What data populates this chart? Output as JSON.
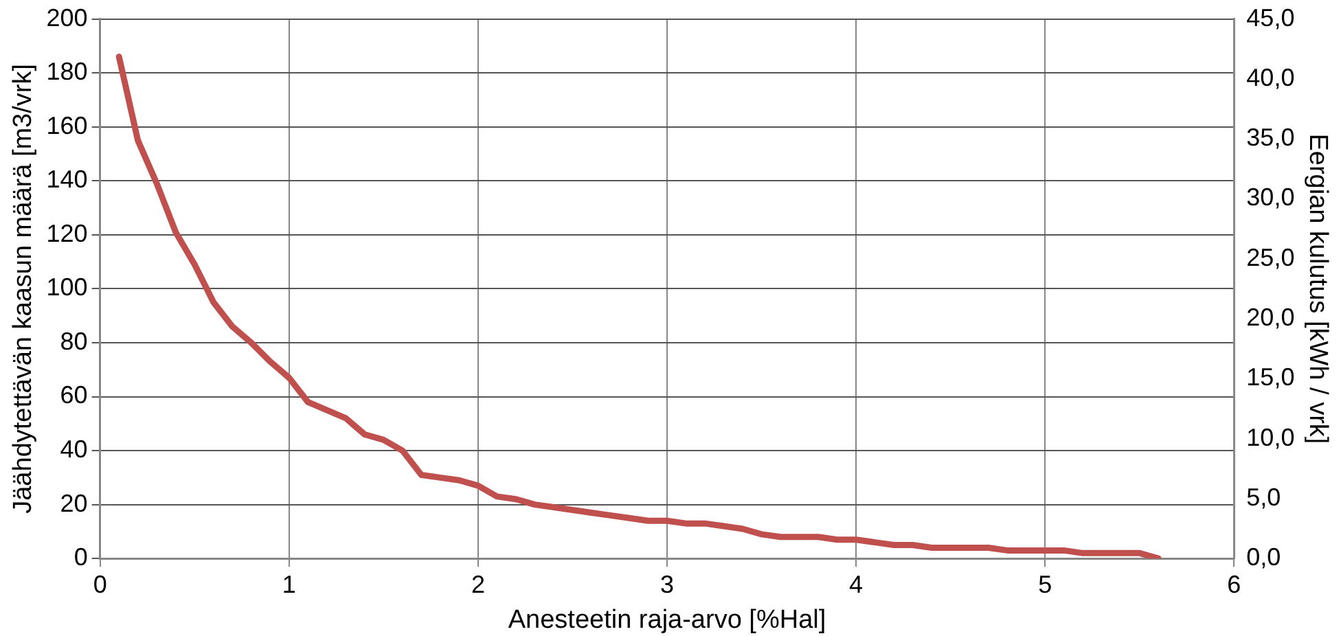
{
  "chart_data": {
    "type": "line",
    "xlabel": "Anesteetin raja-arvo [%Hal]",
    "ylabel": "Jäähdytettävän kaasun määrä [m3/vrk]",
    "y2label": "Eergian kulutus [kWh / vrk]",
    "x": [
      0.1,
      0.2,
      0.3,
      0.4,
      0.5,
      0.6,
      0.7,
      0.8,
      0.9,
      1.0,
      1.1,
      1.2,
      1.3,
      1.4,
      1.5,
      1.6,
      1.7,
      1.8,
      1.9,
      2.0,
      2.1,
      2.2,
      2.3,
      2.4,
      2.5,
      2.6,
      2.7,
      2.8,
      2.9,
      3.0,
      3.1,
      3.2,
      3.3,
      3.4,
      3.5,
      3.6,
      3.7,
      3.8,
      3.9,
      4.0,
      4.1,
      4.2,
      4.3,
      4.4,
      4.5,
      4.6,
      4.7,
      4.8,
      4.9,
      5.0,
      5.1,
      5.2,
      5.3,
      5.4,
      5.5,
      5.6
    ],
    "series": [
      {
        "color": "#c0504d",
        "values": [
          186,
          155,
          139,
          121,
          109,
          95,
          86,
          80,
          73,
          67,
          58,
          55,
          52,
          46,
          44,
          40,
          31,
          30,
          29,
          27,
          23,
          22,
          20,
          19,
          18,
          17,
          16,
          15,
          14,
          14,
          13,
          13,
          12,
          11,
          9,
          8,
          8,
          8,
          7,
          7,
          6,
          5,
          5,
          4,
          4,
          4,
          4,
          3,
          3,
          3,
          3,
          2,
          2,
          2,
          2,
          0
        ]
      }
    ],
    "xlim": [
      0,
      6
    ],
    "xticks": [
      0,
      1,
      2,
      3,
      4,
      5,
      6
    ],
    "ylim": [
      0,
      200
    ],
    "yticks": [
      0,
      20,
      40,
      60,
      80,
      100,
      120,
      140,
      160,
      180,
      200
    ],
    "y2lim": [
      0,
      45
    ],
    "y2ticks": [
      {
        "value": 0,
        "label": "0,0"
      },
      {
        "value": 5,
        "label": "5,0"
      },
      {
        "value": 10,
        "label": "10,0"
      },
      {
        "value": 15,
        "label": "15,0"
      },
      {
        "value": 20,
        "label": "20,0"
      },
      {
        "value": 25,
        "label": "25,0"
      },
      {
        "value": 30,
        "label": "30,0"
      },
      {
        "value": 35,
        "label": "35,0"
      },
      {
        "value": 40,
        "label": "40,0"
      },
      {
        "value": 45,
        "label": "45,0"
      }
    ],
    "grid": true,
    "legend": false,
    "marker": "none",
    "line_style": "solid"
  }
}
